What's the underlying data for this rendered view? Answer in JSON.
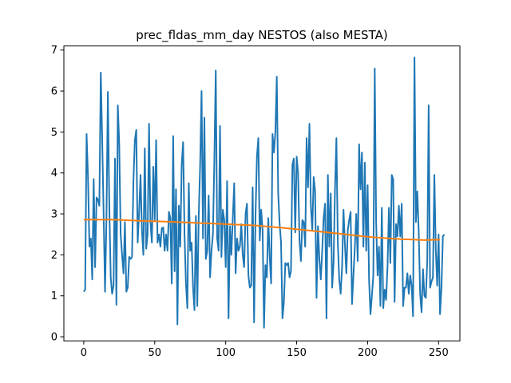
{
  "chart_data": {
    "type": "line",
    "title": "prec_fldas_mm_day NESTOS (also MESTA)",
    "xlabel": "",
    "ylabel": "",
    "xlim": [
      -14,
      265
    ],
    "ylim": [
      -0.1,
      7.1
    ],
    "x_ticks": [
      0,
      50,
      100,
      150,
      200,
      250
    ],
    "y_ticks": [
      0,
      1,
      2,
      3,
      4,
      5,
      6,
      7
    ],
    "grid": false,
    "series": [
      {
        "color": "#1f77b4",
        "x_start": 0,
        "x_step": 1,
        "values": [
          1.1,
          1.15,
          4.95,
          3.9,
          2.2,
          2.4,
          1.4,
          3.85,
          1.7,
          3.4,
          3.35,
          3.2,
          6.45,
          4.8,
          3.0,
          1.1,
          2.9,
          5.98,
          3.2,
          1.45,
          1.05,
          1.25,
          4.35,
          0.78,
          5.65,
          4.7,
          2.5,
          2.0,
          1.55,
          2.8,
          1.1,
          1.2,
          1.95,
          1.9,
          1.95,
          3.8,
          4.8,
          5.05,
          2.3,
          3.05,
          3.95,
          2.6,
          2.0,
          4.6,
          2.15,
          2.5,
          5.2,
          2.8,
          2.3,
          4.15,
          2.85,
          4.8,
          2.3,
          2.5,
          2.2,
          2.65,
          2.67,
          2.1,
          2.5,
          2.1,
          3.05,
          2.9,
          1.3,
          4.9,
          1.6,
          3.6,
          0.3,
          3.2,
          2.2,
          4.2,
          4.75,
          2.5,
          1.3,
          0.7,
          3.75,
          2.1,
          2.3,
          1.2,
          0.65,
          2.95,
          0.75,
          2.95,
          4.2,
          6.0,
          2.4,
          5.35,
          1.9,
          2.1,
          3.45,
          1.45,
          2.1,
          2.5,
          4.3,
          6.5,
          2.4,
          2.1,
          5.15,
          1.95,
          3.1,
          2.85,
          1.7,
          3.8,
          0.45,
          2.7,
          2.0,
          2.9,
          3.75,
          1.55,
          2.4,
          2.1,
          2.2,
          2.75,
          2.0,
          1.7,
          3.0,
          3.25,
          1.5,
          1.2,
          1.25,
          3.65,
          0.35,
          2.95,
          4.4,
          4.85,
          2.35,
          3.1,
          2.6,
          0.22,
          1.75,
          1.45,
          2.9,
          1.95,
          1.3,
          4.95,
          4.5,
          5.0,
          6.35,
          3.5,
          2.75,
          2.3,
          0.45,
          0.85,
          1.8,
          1.75,
          1.8,
          1.45,
          1.6,
          4.2,
          4.35,
          2.55,
          4.4,
          4.0,
          2.35,
          1.85,
          2.85,
          2.8,
          2.2,
          4.85,
          3.65,
          5.2,
          3.2,
          2.6,
          3.9,
          3.55,
          0.95,
          2.7,
          1.9,
          1.4,
          2.1,
          2.9,
          3.25,
          0.45,
          3.95,
          2.2,
          3.5,
          1.2,
          1.8,
          3.6,
          4.85,
          2.3,
          1.4,
          1.05,
          1.7,
          3.1,
          2.25,
          1.55,
          2.6,
          2.85,
          3.05,
          0.8,
          1.5,
          2.2,
          3.0,
          1.85,
          4.7,
          3.6,
          4.5,
          2.2,
          4.25,
          2.1,
          3.7,
          1.4,
          0.55,
          1.0,
          1.5,
          6.55,
          2.8,
          1.5,
          2.2,
          0.75,
          3.15,
          0.7,
          1.15,
          0.9,
          1.7,
          3.15,
          1.8,
          3.95,
          3.85,
          0.85,
          2.75,
          2.45,
          3.2,
          2.45,
          3.25,
          0.75,
          1.2,
          1.2,
          1.55,
          1.05,
          1.5,
          1.25,
          0.5,
          6.82,
          2.8,
          3.55,
          2.55,
          1.05,
          0.6,
          1.65,
          1.0,
          0.95,
          1.85,
          5.65,
          1.2,
          1.35,
          1.45,
          3.95,
          2.15,
          1.25,
          2.5,
          0.55,
          1.2,
          2.45,
          2.5
        ]
      },
      {
        "color": "#ff7f0e",
        "x": [
          0,
          20,
          40,
          60,
          80,
          100,
          120,
          140,
          160,
          180,
          200,
          220,
          240,
          251
        ],
        "values": [
          2.86,
          2.86,
          2.83,
          2.81,
          2.78,
          2.75,
          2.72,
          2.66,
          2.59,
          2.52,
          2.44,
          2.39,
          2.36,
          2.37
        ]
      }
    ]
  }
}
